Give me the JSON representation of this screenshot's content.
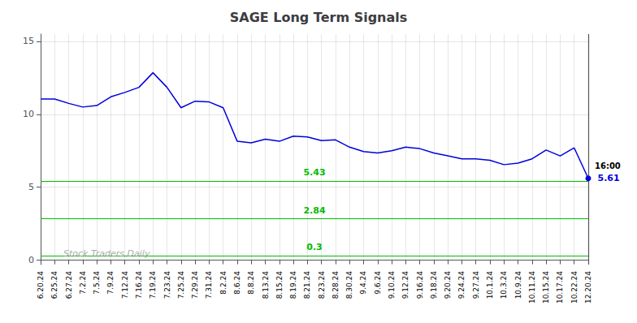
{
  "chart_data": {
    "type": "line",
    "title": "SAGE Long Term Signals",
    "categories": [
      "6.20.24",
      "6.25.24",
      "6.27.24",
      "7.2.24",
      "7.5.24",
      "7.9.24",
      "7.12.24",
      "7.16.24",
      "7.19.24",
      "7.23.24",
      "7.25.24",
      "7.29.24",
      "7.31.24",
      "8.2.24",
      "8.6.24",
      "8.8.24",
      "8.13.24",
      "8.15.24",
      "8.19.24",
      "8.21.24",
      "8.23.24",
      "8.28.24",
      "8.30.24",
      "9.4.24",
      "9.6.24",
      "9.10.24",
      "9.12.24",
      "9.16.24",
      "9.18.24",
      "9.20.24",
      "9.24.24",
      "9.27.24",
      "10.1.24",
      "10.3.24",
      "10.9.24",
      "10.11.24",
      "10.15.24",
      "10.17.24",
      "10.22.24",
      "12.20.24"
    ],
    "values": [
      11.05,
      11.05,
      10.75,
      10.5,
      10.6,
      11.2,
      11.5,
      11.85,
      12.85,
      11.85,
      10.45,
      10.9,
      10.85,
      10.45,
      8.15,
      8.05,
      8.3,
      8.15,
      8.5,
      8.45,
      8.2,
      8.25,
      7.75,
      7.45,
      7.35,
      7.5,
      7.75,
      7.65,
      7.35,
      7.15,
      6.95,
      6.95,
      6.85,
      6.55,
      6.65,
      6.95,
      7.55,
      7.15,
      7.7,
      5.61
    ],
    "color": "#0000dd",
    "ylim": [
      -0.3,
      15.5
    ],
    "yticks": [
      0,
      5,
      10,
      15
    ],
    "grid": true,
    "hlines": [
      {
        "value": 0.3,
        "label": "0.3",
        "color": "#00bb00"
      },
      {
        "value": 2.84,
        "label": "2.84",
        "color": "#00bb00"
      },
      {
        "value": 5.43,
        "label": "5.43",
        "color": "#00bb00"
      }
    ],
    "vlines": [
      {
        "x": "12.20.24",
        "color": "#555555"
      }
    ],
    "watermark": "Stock Traders Daily",
    "annotations": [
      {
        "text": "16:00",
        "x": "12.20.24"
      },
      {
        "text": "5.61",
        "x": "12.20.24",
        "y": 5.61,
        "color": "#0000dd"
      }
    ]
  }
}
